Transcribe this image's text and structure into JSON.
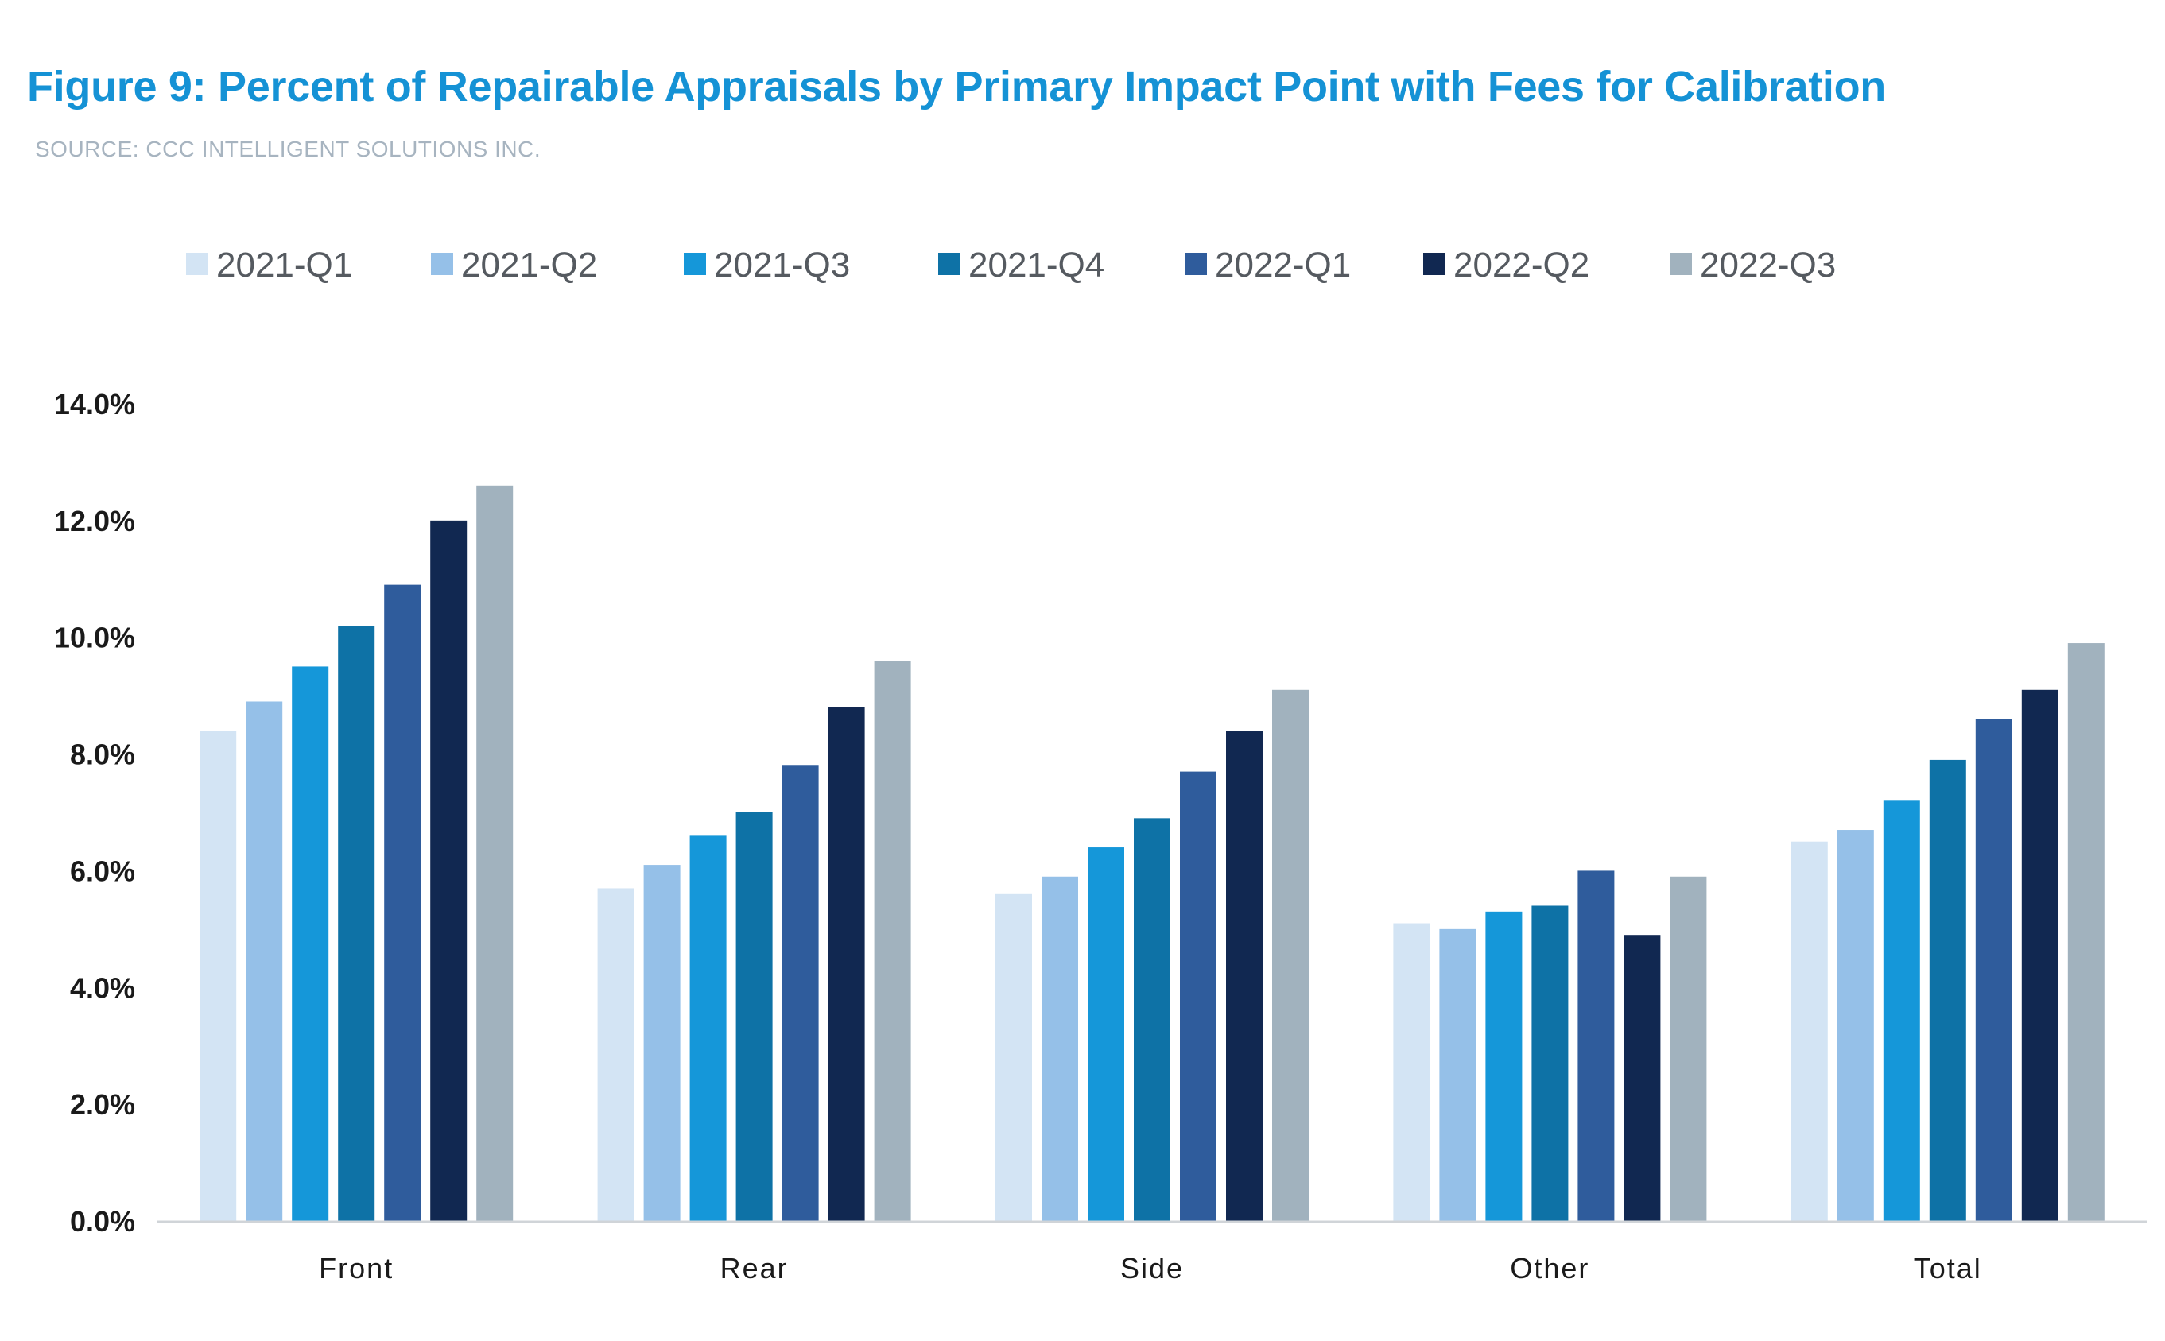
{
  "header": {
    "title": "Figure 9: Percent of Repairable Appraisals by Primary Impact Point with Fees for Calibration",
    "source": "SOURCE: CCC INTELLIGENT SOLUTIONS INC."
  },
  "chart_data": {
    "type": "bar",
    "title": "Figure 9: Percent of Repairable Appraisals by Primary Impact Point with Fees for Calibration",
    "subtitle": "SOURCE: CCC INTELLIGENT SOLUTIONS INC.",
    "xlabel": "",
    "ylabel": "",
    "ylim": [
      0,
      14
    ],
    "yticks": [
      "0.0%",
      "2.0%",
      "4.0%",
      "6.0%",
      "8.0%",
      "10.0%",
      "12.0%",
      "14.0%"
    ],
    "grid": false,
    "legend_position": "top",
    "categories": [
      "Front",
      "Rear",
      "Side",
      "Other",
      "Total"
    ],
    "series": [
      {
        "name": "2021-Q1",
        "color": "#d3e4f4",
        "values": [
          8.4,
          5.7,
          5.6,
          5.1,
          6.5
        ]
      },
      {
        "name": "2021-Q2",
        "color": "#95c0e8",
        "values": [
          8.9,
          6.1,
          5.9,
          5.0,
          6.7
        ]
      },
      {
        "name": "2021-Q3",
        "color": "#1597d9",
        "values": [
          9.5,
          6.6,
          6.4,
          5.3,
          7.2
        ]
      },
      {
        "name": "2021-Q4",
        "color": "#0e72a6",
        "values": [
          10.2,
          7.0,
          6.9,
          5.4,
          7.9
        ]
      },
      {
        "name": "2022-Q1",
        "color": "#2f5c9c",
        "values": [
          10.9,
          7.8,
          7.7,
          6.0,
          8.6
        ]
      },
      {
        "name": "2022-Q2",
        "color": "#112851",
        "values": [
          12.0,
          8.8,
          8.4,
          4.9,
          9.1
        ]
      },
      {
        "name": "2022-Q3",
        "color": "#a1b2be",
        "values": [
          12.6,
          9.6,
          9.1,
          5.9,
          9.9
        ]
      }
    ]
  }
}
